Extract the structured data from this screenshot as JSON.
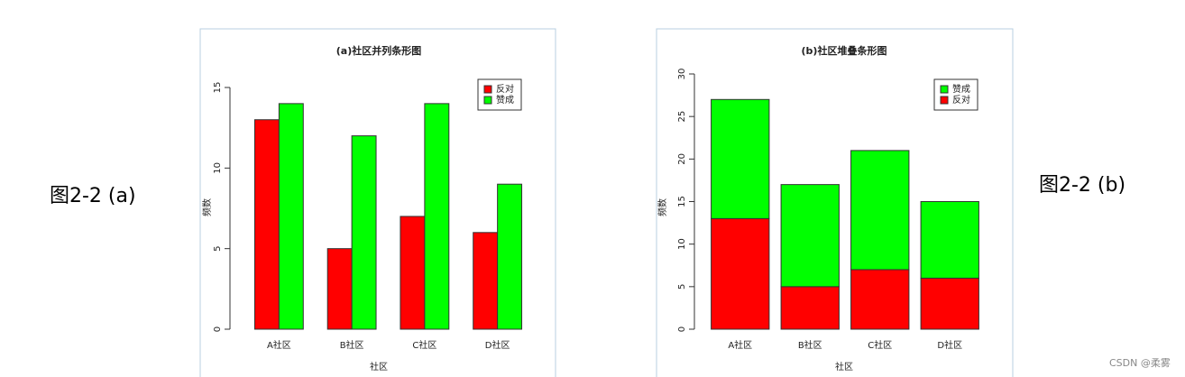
{
  "captions": [
    "图2-2 (a)",
    "图2-2 (b)"
  ],
  "watermark": "CSDN @柔雾",
  "chart_data": [
    {
      "type": "bar",
      "stacked": false,
      "title": "(a)社区并列条形图",
      "categories": [
        "A社区",
        "B社区",
        "C社区",
        "D社区"
      ],
      "series": [
        {
          "name": "反对",
          "color": "#ff0000",
          "values": [
            13,
            5,
            7,
            6
          ]
        },
        {
          "name": "赞成",
          "color": "#00ff00",
          "values": [
            14,
            12,
            14,
            9
          ]
        }
      ],
      "xlabel": "社区",
      "ylabel": "频数",
      "ylim": [
        0,
        15
      ],
      "yticks": [
        0,
        5,
        10,
        15
      ],
      "legend": "top-right"
    },
    {
      "type": "bar",
      "stacked": true,
      "title": "(b)社区堆叠条形图",
      "categories": [
        "A社区",
        "B社区",
        "C社区",
        "D社区"
      ],
      "series": [
        {
          "name": "反对",
          "color": "#ff0000",
          "values": [
            13,
            5,
            7,
            6
          ]
        },
        {
          "name": "赞成",
          "color": "#00ff00",
          "values": [
            14,
            12,
            14,
            9
          ]
        }
      ],
      "xlabel": "社区",
      "ylabel": "频数",
      "ylim": [
        0,
        30
      ],
      "yticks": [
        0,
        5,
        10,
        15,
        20,
        25,
        30
      ],
      "legend": "top-right"
    }
  ]
}
